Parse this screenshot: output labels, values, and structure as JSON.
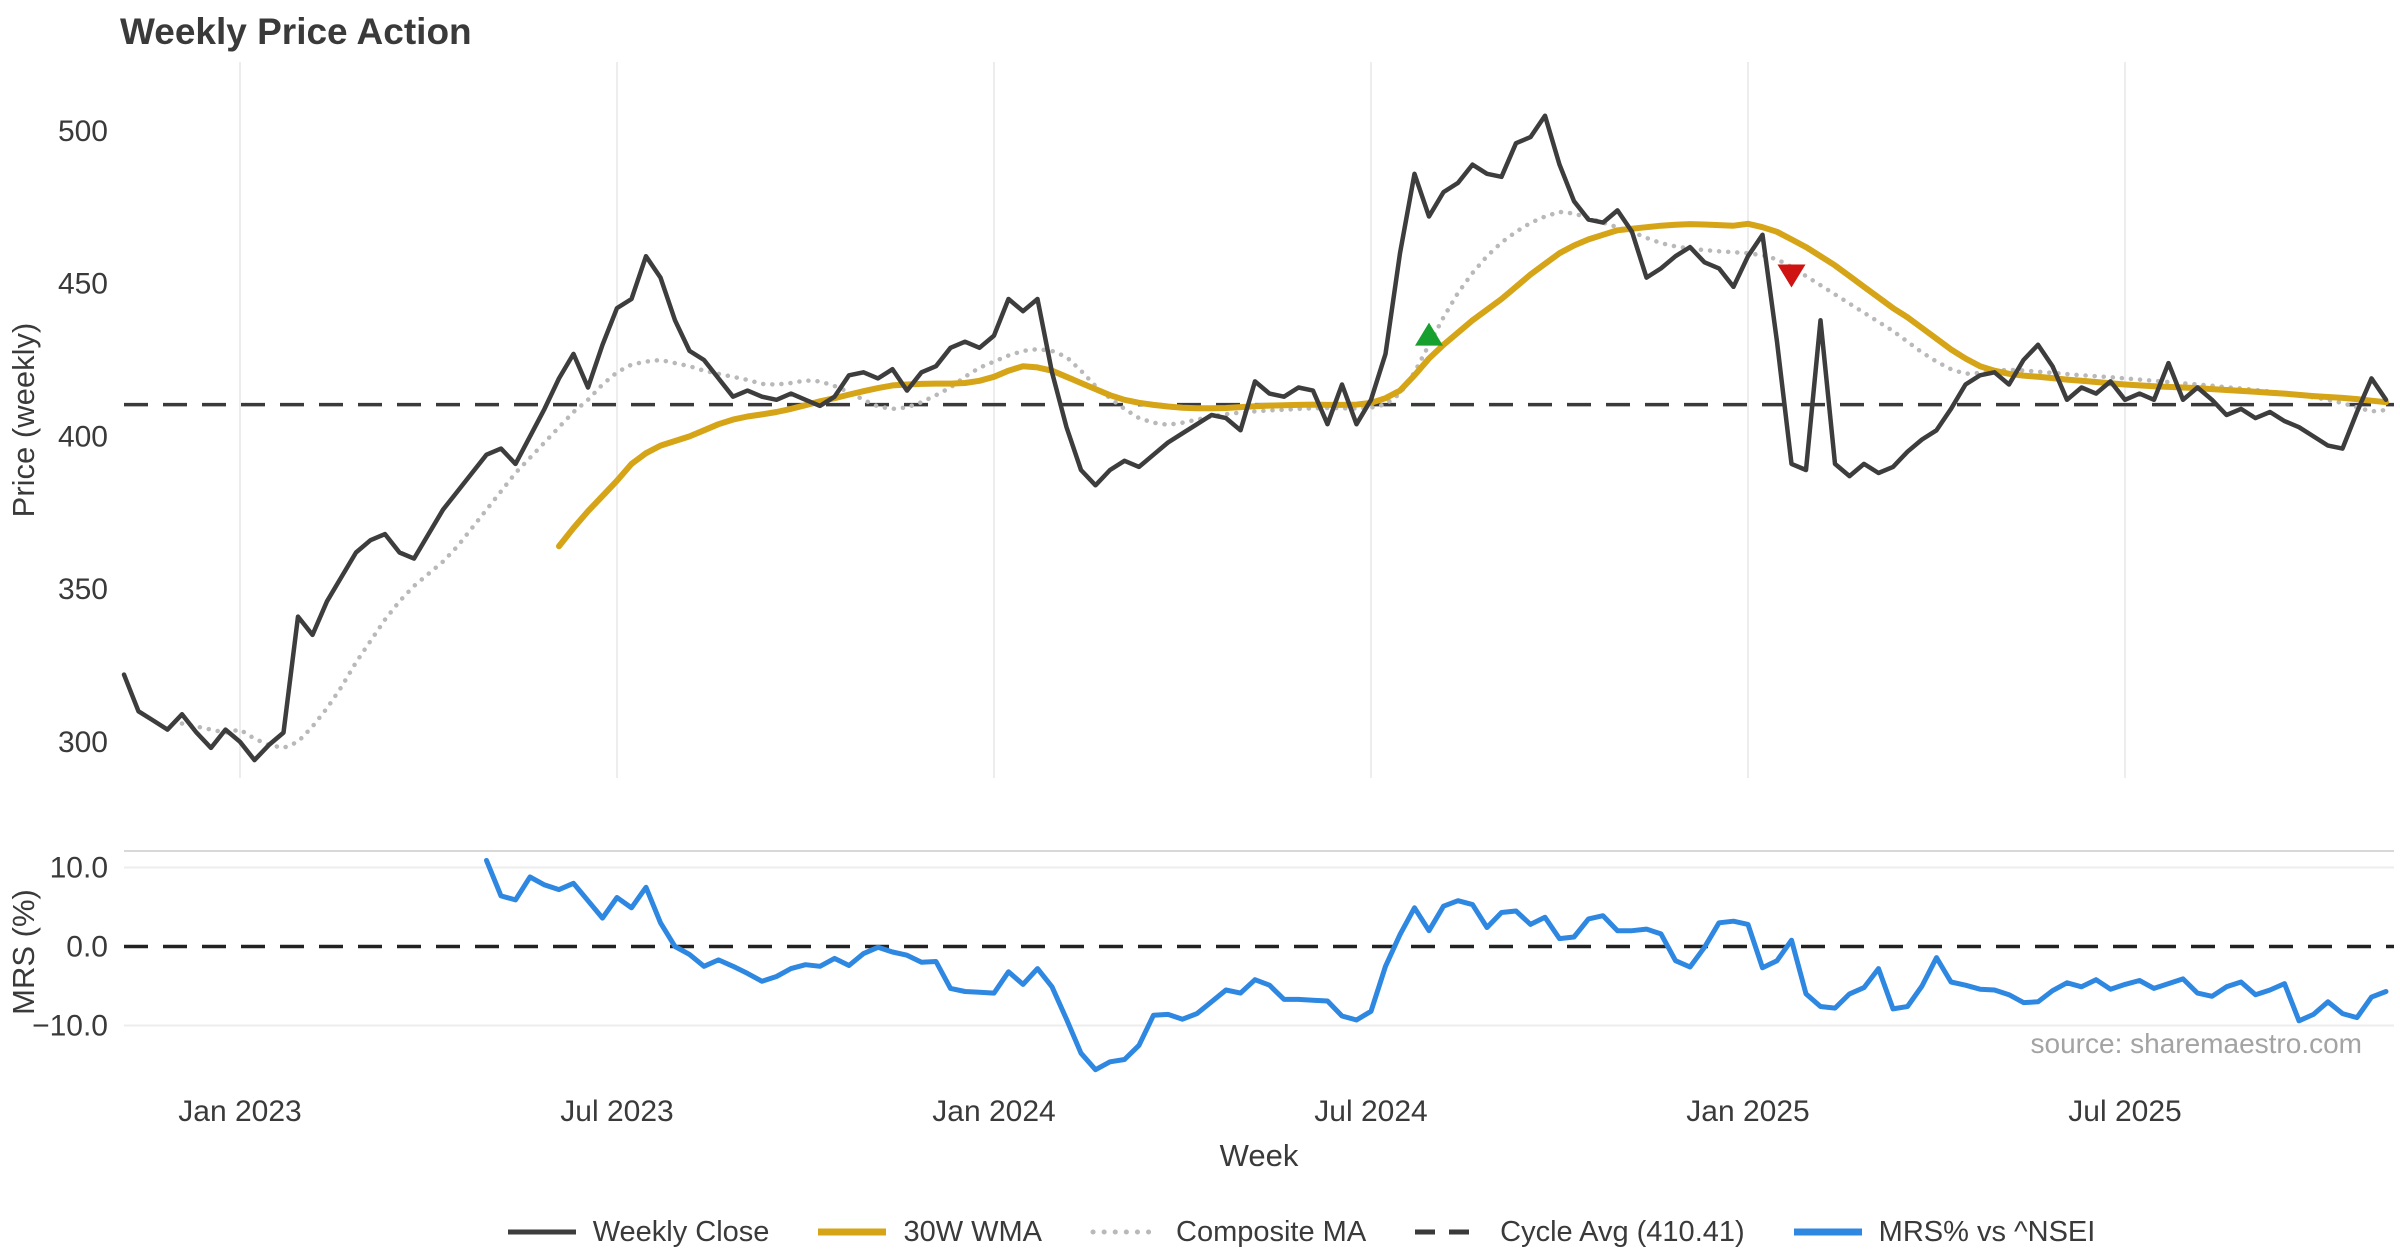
{
  "title": "Weekly Price Action",
  "source_note": "source: sharemaestro.com",
  "colors": {
    "weekly_close": "#3d3d3d",
    "wma_30w": "#d6a417",
    "composite_ma": "#b9b9b9",
    "cycle_avg": "#3a3a3a",
    "mrs": "#2e87e0",
    "buy_marker": "#17a02e",
    "sell_marker": "#cf1212",
    "grid": "#ededed",
    "panel_spine": "#d8d8d8",
    "text": "#3a3a3a",
    "source_text": "#a3a3a3"
  },
  "legend": {
    "items": [
      {
        "label": "Weekly Close",
        "color": "#3d3d3d",
        "style": "solid"
      },
      {
        "label": "30W WMA",
        "color": "#d6a417",
        "style": "solid"
      },
      {
        "label": "Composite MA",
        "color": "#b9b9b9",
        "style": "dotted"
      },
      {
        "label": "Cycle Avg (410.41)",
        "color": "#3a3a3a",
        "style": "dashed"
      },
      {
        "label": "MRS% vs ^NSEI",
        "color": "#2e87e0",
        "style": "solid"
      }
    ]
  },
  "chart_data": {
    "type": "line",
    "title": "Weekly Price Action",
    "xlabel": "Week",
    "x_unit": "weekly index, week 0 = early Nov 2022",
    "x_ticks": [
      {
        "week": 8,
        "label": "Jan 2023"
      },
      {
        "week": 34,
        "label": "Jul 2023"
      },
      {
        "week": 60,
        "label": "Jan 2024"
      },
      {
        "week": 86,
        "label": "Jul 2024"
      },
      {
        "week": 112,
        "label": "Jan 2025"
      },
      {
        "week": 138,
        "label": "Jul 2025"
      }
    ],
    "panels": [
      {
        "name": "price",
        "ylabel": "Price (weekly)",
        "ylim": [
          288,
          523
        ],
        "grid": "vertical-only",
        "y_ticks": [
          {
            "v": 300,
            "label": "300"
          },
          {
            "v": 350,
            "label": "350"
          },
          {
            "v": 400,
            "label": "400"
          },
          {
            "v": 450,
            "label": "450"
          },
          {
            "v": 500,
            "label": "500"
          }
        ],
        "cycle_avg": 410.41,
        "series": [
          {
            "name": "Weekly Close",
            "color": "#3d3d3d",
            "style": "solid",
            "width": 4.5,
            "start_week": 0,
            "values": [
              322,
              310,
              307,
              304,
              309,
              303,
              298,
              304,
              300,
              294,
              299,
              303,
              341,
              335,
              346,
              354,
              362,
              366,
              368,
              362,
              360,
              368,
              376,
              382,
              388,
              394,
              396,
              391,
              400,
              409,
              419,
              427,
              416,
              430,
              442,
              445,
              459,
              452,
              438,
              428,
              425,
              419,
              413,
              415,
              413,
              412,
              414,
              412,
              410,
              413,
              420,
              421,
              419,
              422,
              415,
              421,
              423,
              429,
              431,
              429,
              433,
              445,
              441,
              445,
              421,
              403,
              389,
              384,
              389,
              392,
              390,
              394,
              398,
              401,
              404,
              407,
              406,
              402,
              418,
              414,
              413,
              416,
              415,
              404,
              417,
              404,
              412,
              427,
              460,
              486,
              472,
              480,
              483,
              489,
              486,
              485,
              496,
              498,
              505,
              489,
              477,
              471,
              470,
              474,
              467,
              452,
              455,
              459,
              462,
              457,
              455,
              449,
              459,
              466,
              431,
              391,
              389,
              438,
              391,
              387,
              391,
              388,
              390,
              395,
              399,
              402,
              409,
              417,
              420,
              421,
              417,
              425,
              430,
              423,
              412,
              416,
              414,
              418,
              412,
              414,
              412,
              424,
              412,
              416,
              412,
              407,
              409,
              406,
              408,
              405,
              403,
              400,
              397,
              396,
              408,
              419,
              412
            ]
          },
          {
            "name": "30W WMA",
            "color": "#d6a417",
            "style": "solid",
            "width": 6,
            "start_week": 30,
            "values": [
              364,
              370,
              375.5,
              380.5,
              385.5,
              391,
              394.5,
              397,
              398.5,
              400,
              402,
              404,
              405.5,
              406.5,
              407.2,
              408,
              409,
              410.2,
              411.5,
              412.5,
              413.7,
              414.8,
              415.8,
              416.7,
              417,
              417.2,
              417.3,
              417.3,
              417.5,
              418.2,
              419.5,
              421.5,
              423,
              422.6,
              421.5,
              419.5,
              417.5,
              415.5,
              413.5,
              412,
              411,
              410.3,
              409.8,
              409.4,
              409.2,
              409.2,
              409.3,
              409.6,
              409.9,
              410.1,
              410.2,
              410.3,
              410.4,
              410.3,
              410.3,
              410.4,
              411,
              412.5,
              415,
              420,
              425.5,
              430,
              434,
              438,
              441.5,
              445,
              449,
              453,
              456.5,
              460,
              462.5,
              464.5,
              466,
              467.5,
              468,
              468.5,
              469,
              469.3,
              469.5,
              469.4,
              469.2,
              469,
              469.6,
              468.5,
              467,
              464.5,
              462,
              459,
              456,
              452.5,
              449,
              445.5,
              442,
              439,
              435.5,
              432,
              428.5,
              425.5,
              423,
              421.5,
              420.5,
              419.9,
              419.5,
              419.1,
              418.6,
              418.2,
              417.8,
              417.4,
              417,
              416.7,
              416.4,
              416.2,
              416,
              415.8,
              415.5,
              415.2,
              414.9,
              414.6,
              414.3,
              414,
              413.6,
              413.2,
              412.9,
              412.6,
              412.2,
              411.7,
              411.2
            ]
          },
          {
            "name": "Composite MA",
            "color": "#b9b9b9",
            "style": "dotted",
            "width": 4.5,
            "start_week": 4,
            "values": [
              306,
              305,
              304,
              303,
              304,
              301,
              299,
              298,
              300,
              305,
              311,
              318,
              326,
              333,
              340,
              346,
              351,
              355,
              359,
              364,
              370,
              376,
              382,
              388,
              393,
              398,
              403,
              408,
              412,
              417,
              421,
              423.5,
              424.5,
              425,
              424,
              423,
              421.5,
              420.5,
              419.5,
              418.5,
              417.2,
              417,
              417.5,
              418.3,
              418,
              416.5,
              414.5,
              412,
              409.8,
              409,
              409.5,
              411.2,
              413.5,
              416,
              419.5,
              422.5,
              424.5,
              426.5,
              428,
              428.6,
              428,
              426,
              421.5,
              416.5,
              412.5,
              409,
              406,
              404.5,
              403.8,
              404.5,
              405.5,
              406.5,
              407.3,
              407.8,
              408.2,
              408.5,
              408.7,
              409,
              409.2,
              409.3,
              409.2,
              409.1,
              409.4,
              410.5,
              414,
              421,
              430,
              439,
              447,
              453.5,
              459,
              463.5,
              467,
              469.9,
              472,
              473.5,
              473,
              471.5,
              470,
              468.5,
              467,
              465,
              463.3,
              462.2,
              461.5,
              461,
              460.6,
              460.3,
              460,
              459.3,
              458,
              455.5,
              452.5,
              449.5,
              446.5,
              443.5,
              440.5,
              437.5,
              434.5,
              431,
              427.5,
              424.5,
              422,
              420.5,
              420.8,
              421.5,
              421.8,
              421.6,
              421.2,
              420.8,
              420.4,
              420,
              419.7,
              419.4,
              419,
              418.6,
              418.2,
              417.8,
              417.4,
              417,
              416.6,
              416.1,
              415.7,
              415.2,
              414.7,
              414.1,
              413.5,
              412.8,
              412,
              410.9,
              409.5,
              408.2,
              408.6
            ]
          }
        ],
        "markers": [
          {
            "shape": "triangle-up",
            "meaning": "buy-signal",
            "color": "#17a02e",
            "week": 90,
            "price": 433
          },
          {
            "shape": "triangle-down",
            "meaning": "sell-signal",
            "color": "#cf1212",
            "week": 115,
            "price": 453
          }
        ]
      },
      {
        "name": "mrs",
        "ylabel": "MRS (%)",
        "ylim": [
          -16,
          12.1
        ],
        "zero_line_dashed": true,
        "y_ticks": [
          {
            "v": 10,
            "label": "10.0"
          },
          {
            "v": 0,
            "label": "0.0"
          },
          {
            "v": -10,
            "label": "−10.0"
          }
        ],
        "series": [
          {
            "name": "MRS% vs ^NSEI",
            "color": "#2e87e0",
            "style": "solid",
            "width": 5,
            "start_week": 25,
            "values": [
              10.9,
              6.4,
              5.9,
              8.8,
              7.8,
              7.2,
              8.0,
              5.8,
              3.6,
              6.2,
              4.9,
              7.5,
              3.0,
              0.0,
              -1.0,
              -2.5,
              -1.7,
              -2.5,
              -3.4,
              -4.4,
              -3.8,
              -2.8,
              -2.3,
              -2.5,
              -1.5,
              -2.4,
              -0.9,
              -0.1,
              -0.7,
              -1.1,
              -2.0,
              -1.9,
              -5.3,
              -5.7,
              -5.8,
              -5.9,
              -3.2,
              -4.8,
              -2.8,
              -5.1,
              -9.2,
              -13.5,
              -15.6,
              -14.6,
              -14.3,
              -12.5,
              -8.7,
              -8.6,
              -9.2,
              -8.5,
              -7.0,
              -5.5,
              -5.9,
              -4.2,
              -4.9,
              -6.7,
              -6.7,
              -6.8,
              -6.9,
              -8.8,
              -9.3,
              -8.2,
              -2.5,
              1.5,
              4.9,
              2.0,
              5.1,
              5.8,
              5.3,
              2.4,
              4.3,
              4.5,
              2.8,
              3.7,
              1.0,
              1.2,
              3.5,
              3.9,
              2.0,
              2.0,
              2.2,
              1.6,
              -1.8,
              -2.6,
              -0.1,
              3.0,
              3.2,
              2.8,
              -2.7,
              -1.8,
              0.8,
              -6.0,
              -7.6,
              -7.8,
              -6.0,
              -5.2,
              -2.8,
              -7.9,
              -7.6,
              -5.0,
              -1.4,
              -4.5,
              -4.9,
              -5.4,
              -5.5,
              -6.1,
              -7.1,
              -7.0,
              -5.6,
              -4.6,
              -5.1,
              -4.2,
              -5.4,
              -4.8,
              -4.3,
              -5.3,
              -4.7,
              -4.1,
              -5.9,
              -6.3,
              -5.1,
              -4.5,
              -6.1,
              -5.5,
              -4.7,
              -9.4,
              -8.6,
              -7.0,
              -8.5,
              -9.0,
              -6.4,
              -5.7
            ]
          }
        ]
      }
    ]
  }
}
